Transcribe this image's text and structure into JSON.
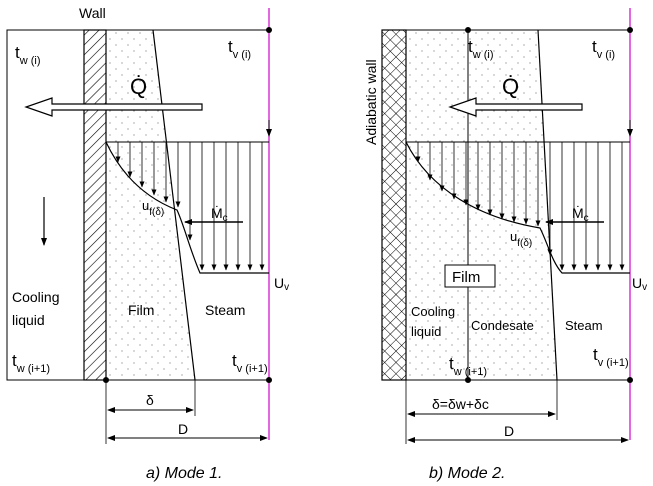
{
  "colors": {
    "line": "#000000",
    "vapor_axis": "#d000d0",
    "hatch": "#000000",
    "background": "#ffffff"
  },
  "panel_a": {
    "wall_label": "Wall",
    "t_w_top": {
      "main": "t",
      "sub": "w (i)"
    },
    "t_v_top": {
      "main": "t",
      "sub": "v (i)"
    },
    "heat_flow": "Q̇",
    "u_f": {
      "main": "u",
      "sub": "f(δ)"
    },
    "m_c": {
      "main": "Ṁ",
      "sub": "c"
    },
    "U_v": {
      "main": "U",
      "sub": "v"
    },
    "cooling_label_line1": "Cooling",
    "cooling_label_line2": "liquid",
    "film_label": "Film",
    "steam_label": "Steam",
    "t_w_bottom": {
      "main": "t",
      "sub": "w (i+1)"
    },
    "t_v_bottom": {
      "main": "t",
      "sub": "v (i+1)"
    },
    "delta_label": "δ",
    "D_label": "D",
    "caption": "a) Mode 1."
  },
  "panel_b": {
    "wall_label": "Adiabatic wall",
    "t_w_top": {
      "main": "t",
      "sub": "w (i)"
    },
    "t_v_top": {
      "main": "t",
      "sub": "v (i)"
    },
    "heat_flow": "Q̇",
    "m_c": {
      "main": "Ṁ",
      "sub": "c"
    },
    "u_f": {
      "main": "u",
      "sub": "f(δ)"
    },
    "film_box": "Film",
    "U_v": {
      "main": "U",
      "sub": "v"
    },
    "cooling_label_line1": "Cooling",
    "cooling_label_line2": "liquid",
    "condensate_label": "Condesate",
    "steam_label": "Steam",
    "t_w_bottom": {
      "main": "t",
      "sub": "w (i+1)"
    },
    "t_v_bottom": {
      "main": "t",
      "sub": "v (i+1)"
    },
    "delta_label": "δ=δw+δc",
    "D_label": "D",
    "caption": "b) Mode 2."
  }
}
